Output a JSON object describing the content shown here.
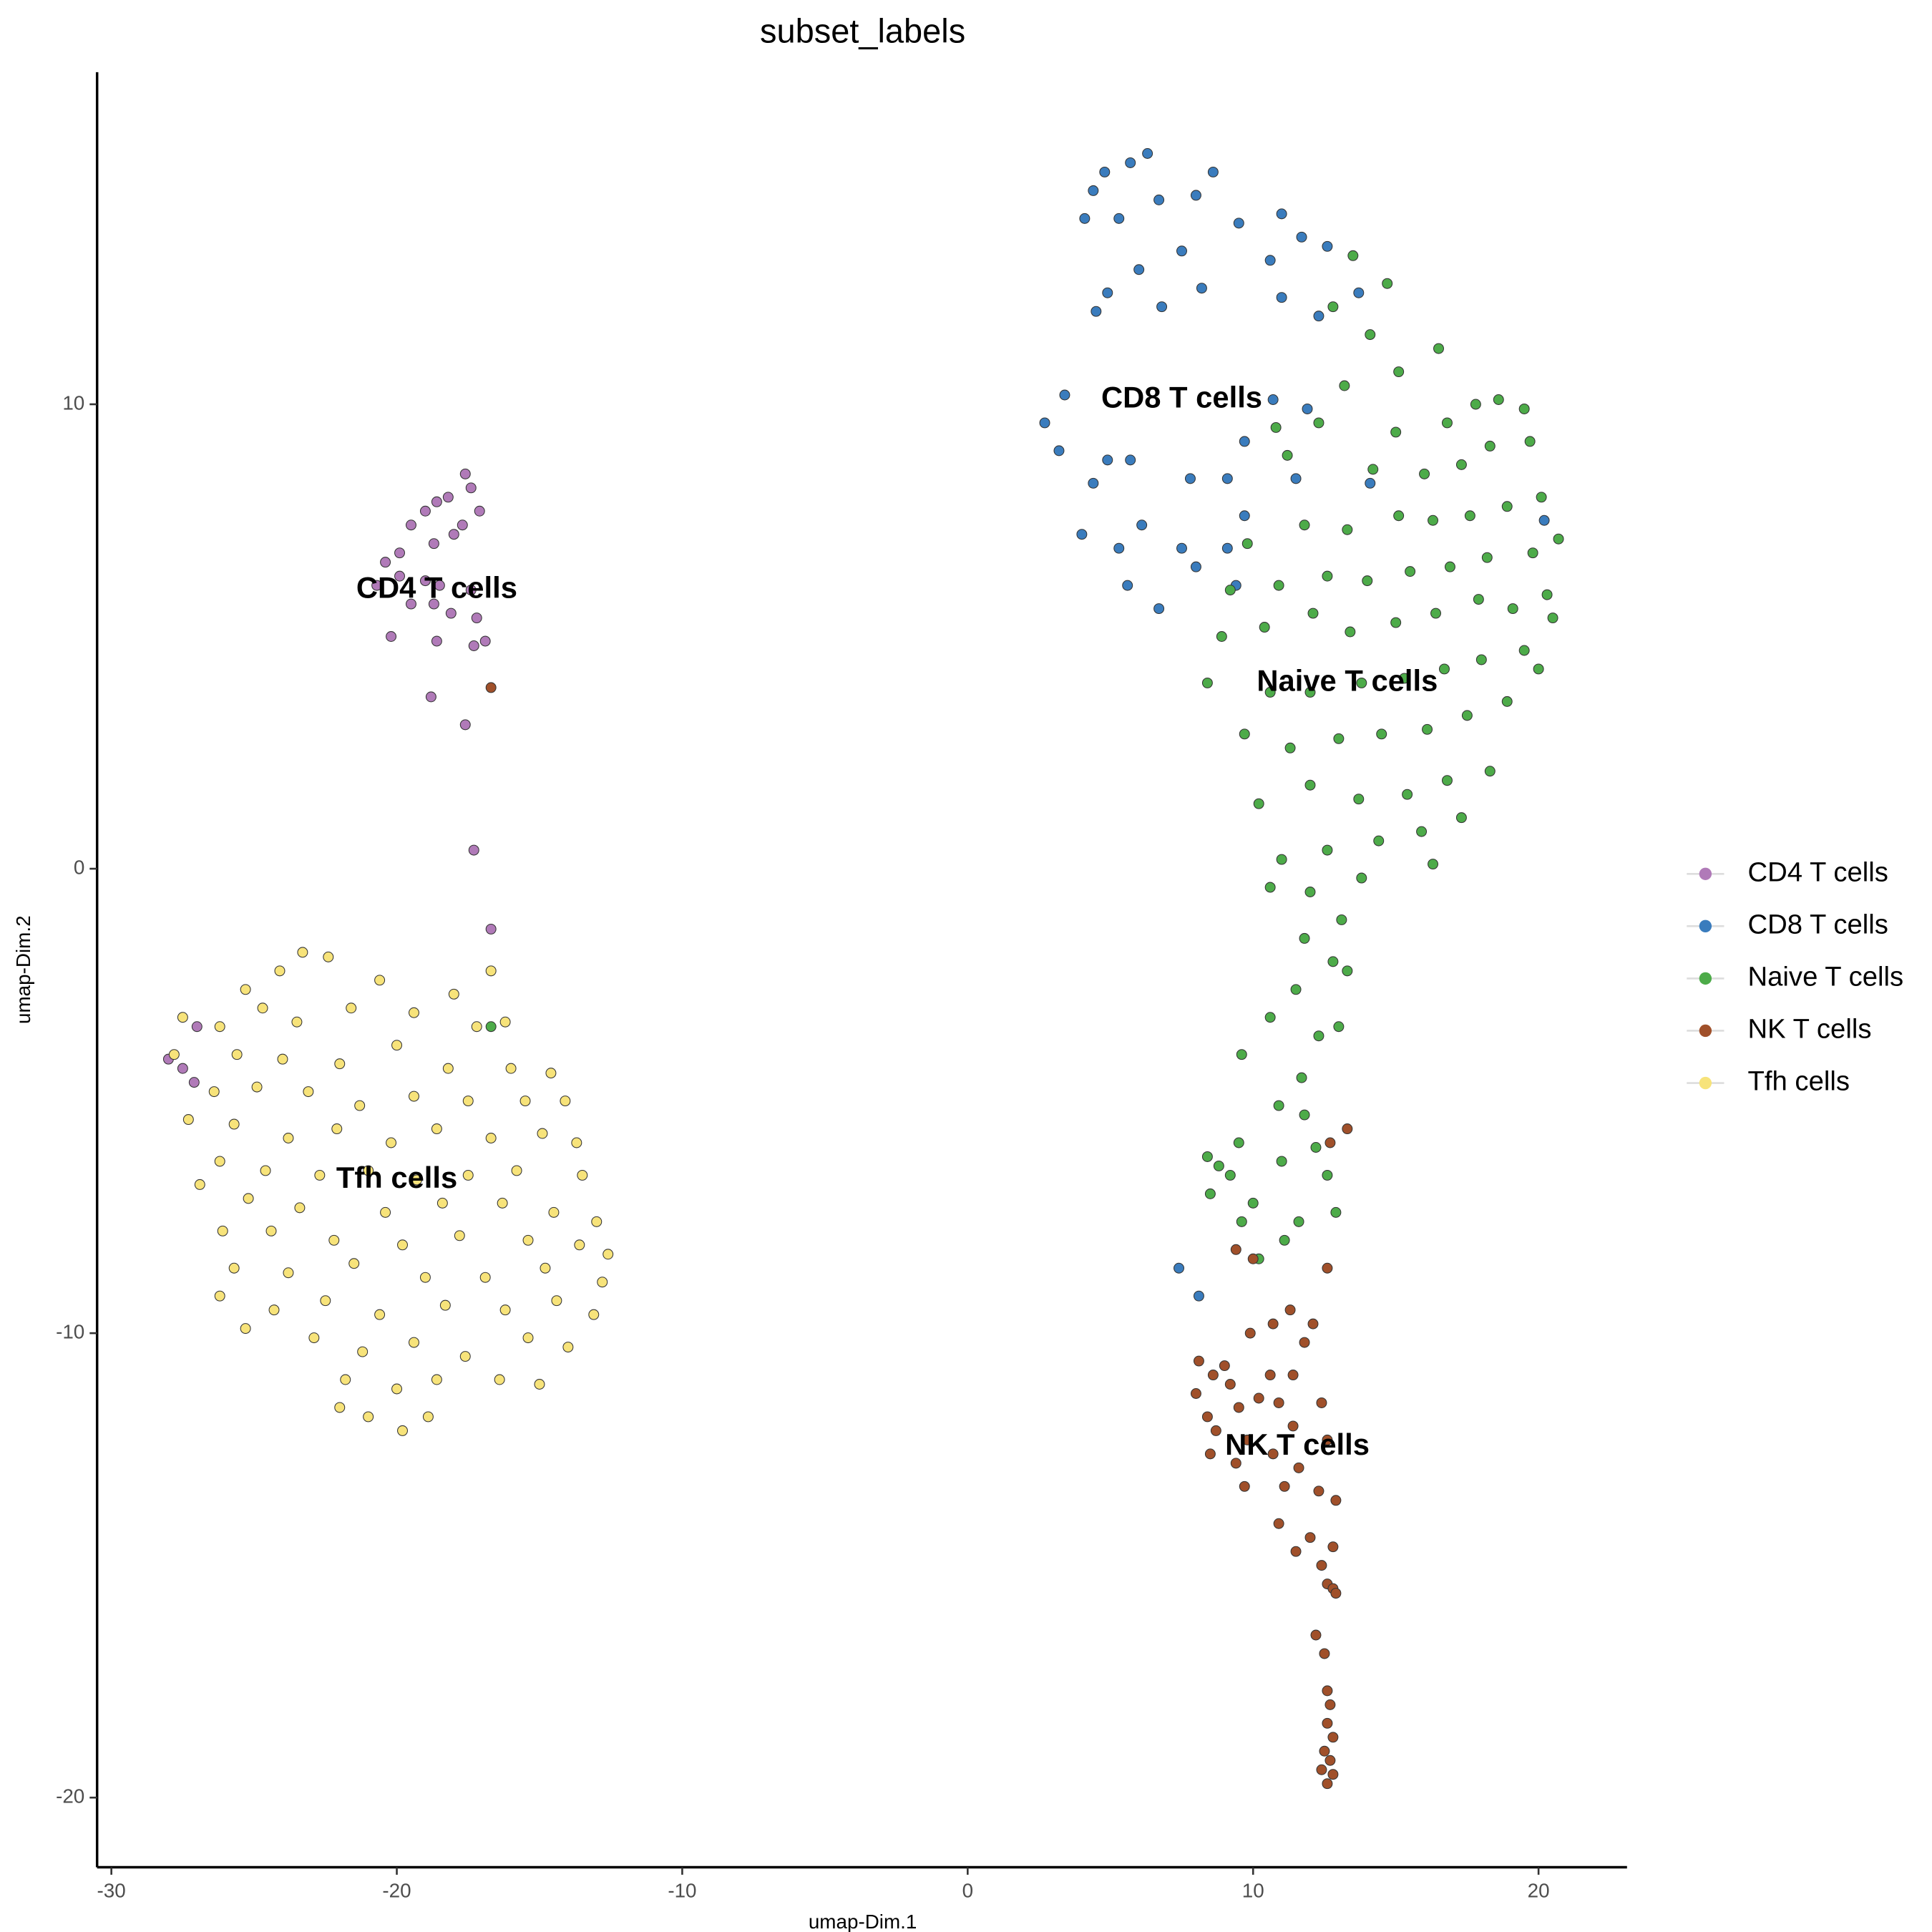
{
  "chart_data": {
    "type": "scatter",
    "title": "subset_labels",
    "x_label": "umap-Dim.1",
    "y_label": "umap-Dim.2",
    "xlim": [
      -30.5,
      23.1
    ],
    "ylim": [
      -21.5,
      17.15
    ],
    "xticks": [
      -30,
      -20,
      -10,
      0,
      10,
      20
    ],
    "yticks": [
      -20,
      -10,
      0,
      10
    ],
    "legend": "right",
    "series": [
      {
        "name": "CD4 T cells",
        "color": "#b07ab8",
        "x": [
          -17.6,
          -17.4,
          -18.2,
          -18.6,
          -19.0,
          -19.5,
          -17.1,
          -17.7,
          -18.0,
          -18.7,
          -19.9,
          -20.4,
          -20.7,
          -19.9,
          -19.0,
          -18.5,
          -17.4,
          -19.5,
          -18.7,
          -18.1,
          -17.2,
          -20.2,
          -18.6,
          -16.9,
          -17.3,
          -18.8,
          -17.6,
          -17.3,
          -16.7,
          -28.0,
          -27.5,
          -27.1,
          -27.0
        ],
        "y": [
          8.5,
          8.2,
          8.0,
          7.9,
          7.7,
          7.4,
          7.7,
          7.4,
          7.2,
          7.0,
          6.8,
          6.6,
          6.1,
          6.3,
          6.2,
          6.1,
          6.0,
          5.7,
          5.7,
          5.5,
          5.4,
          5.0,
          4.9,
          4.9,
          4.8,
          3.7,
          3.1,
          0.4,
          -1.3,
          -4.1,
          -4.3,
          -4.6,
          -3.4
        ]
      },
      {
        "name": "CD8 T cells",
        "color": "#3a7cbd",
        "x": [
          6.3,
          5.7,
          4.8,
          4.4,
          4.1,
          5.3,
          6.7,
          8.0,
          8.6,
          9.5,
          11.0,
          11.7,
          12.6,
          13.7,
          10.6,
          7.5,
          6.0,
          4.9,
          4.5,
          6.8,
          8.2,
          11.0,
          12.3,
          3.4,
          2.7,
          3.2,
          4.9,
          5.7,
          4.4,
          7.8,
          9.1,
          9.7,
          11.5,
          4.0,
          5.3,
          6.1,
          7.5,
          9.1,
          9.7,
          8.0,
          9.4,
          10.7,
          11.9,
          14.1,
          20.2,
          7.4,
          8.1,
          5.6,
          6.7
        ],
        "y": [
          15.4,
          15.2,
          15.0,
          14.6,
          14.0,
          14.0,
          14.4,
          14.5,
          15.0,
          13.9,
          14.1,
          13.6,
          13.4,
          12.4,
          13.1,
          13.3,
          12.9,
          12.4,
          12.0,
          12.1,
          12.5,
          12.3,
          11.9,
          10.2,
          9.6,
          9.0,
          8.8,
          8.8,
          8.3,
          8.4,
          8.4,
          9.2,
          8.4,
          7.2,
          6.9,
          7.4,
          6.9,
          6.9,
          7.6,
          6.5,
          6.1,
          10.1,
          9.9,
          8.3,
          7.5,
          -8.6,
          -9.2,
          6.1,
          5.6
        ]
      },
      {
        "name": "Naive T cells",
        "color": "#4dab49",
        "x": [
          13.5,
          14.7,
          12.8,
          14.1,
          16.5,
          15.1,
          13.2,
          17.8,
          18.6,
          19.5,
          16.8,
          15.0,
          12.3,
          10.8,
          18.3,
          19.7,
          17.3,
          16.0,
          14.2,
          11.2,
          20.1,
          18.9,
          17.6,
          16.3,
          15.1,
          13.3,
          11.8,
          9.8,
          20.7,
          19.8,
          18.2,
          16.9,
          15.5,
          14.0,
          12.6,
          10.9,
          9.2,
          20.3,
          19.1,
          17.9,
          16.4,
          15.0,
          13.4,
          12.1,
          10.4,
          8.9,
          20.5,
          19.5,
          18.0,
          16.7,
          15.3,
          13.8,
          12.0,
          10.6,
          8.4,
          20.0,
          18.9,
          17.5,
          16.1,
          14.5,
          13.0,
          11.3,
          9.7,
          18.3,
          16.8,
          15.4,
          13.7,
          12.0,
          10.2,
          17.3,
          15.9,
          14.4,
          12.6,
          11.0,
          16.3,
          13.8,
          12.0,
          10.6,
          13.1,
          11.8,
          12.8,
          11.5,
          13.3,
          10.6,
          12.3,
          9.6,
          11.7,
          13.0,
          10.9,
          11.8,
          12.2,
          9.5,
          8.4,
          9.2,
          8.8,
          11.0,
          12.6,
          8.5,
          10.0,
          11.6,
          12.9,
          9.6,
          11.1,
          10.2,
          -16.7
        ],
        "y": [
          13.2,
          12.6,
          12.1,
          11.5,
          11.2,
          10.7,
          10.4,
          10.0,
          10.1,
          9.9,
          9.6,
          9.4,
          9.6,
          9.5,
          9.1,
          9.2,
          8.7,
          8.5,
          8.6,
          8.9,
          8.0,
          7.8,
          7.6,
          7.5,
          7.6,
          7.3,
          7.4,
          7.0,
          7.1,
          6.8,
          6.7,
          6.5,
          6.4,
          6.2,
          6.3,
          6.1,
          6.0,
          5.9,
          5.6,
          5.8,
          5.5,
          5.3,
          5.1,
          5.5,
          5.2,
          5.0,
          5.4,
          4.7,
          4.5,
          4.3,
          4.1,
          4.0,
          3.8,
          3.8,
          4.0,
          4.3,
          3.6,
          3.3,
          3.0,
          2.9,
          2.8,
          2.6,
          2.9,
          2.1,
          1.9,
          1.6,
          1.5,
          1.8,
          1.4,
          1.1,
          0.8,
          0.6,
          0.4,
          0.2,
          0.1,
          -0.2,
          -0.5,
          -0.4,
          -1.1,
          -1.5,
          -2.0,
          -2.6,
          -2.2,
          -3.2,
          -3.6,
          -4.0,
          -4.5,
          -3.4,
          -5.1,
          -5.3,
          -6.0,
          -5.9,
          -6.2,
          -6.6,
          -6.4,
          -6.3,
          -6.6,
          -7.0,
          -7.2,
          -7.6,
          -7.4,
          -7.6,
          -8.0,
          -8.4,
          -3.4
        ]
      },
      {
        "name": "NK T cells",
        "color": "#a0502a",
        "x": [
          13.3,
          12.7,
          9.4,
          10.0,
          12.6,
          11.3,
          10.7,
          12.1,
          9.9,
          11.8,
          8.1,
          8.6,
          9.0,
          10.6,
          11.4,
          9.2,
          10.2,
          8.0,
          8.4,
          9.5,
          10.9,
          12.4,
          8.7,
          9.8,
          11.4,
          12.6,
          8.5,
          9.4,
          10.7,
          11.6,
          9.7,
          11.1,
          12.3,
          12.9,
          10.9,
          12.0,
          12.8,
          11.5,
          12.4,
          12.6,
          12.8,
          12.9,
          12.2,
          12.5,
          12.6,
          12.7,
          12.6,
          12.8,
          12.5,
          12.7,
          12.4,
          12.8,
          12.6,
          -16.7
        ],
        "y": [
          -5.6,
          -5.9,
          -8.2,
          -8.4,
          -8.6,
          -9.5,
          -9.8,
          -9.8,
          -10.0,
          -10.2,
          -10.6,
          -10.9,
          -10.7,
          -10.9,
          -10.9,
          -11.1,
          -11.4,
          -11.3,
          -11.8,
          -11.6,
          -11.5,
          -11.5,
          -12.1,
          -12.3,
          -12.0,
          -12.3,
          -12.6,
          -12.8,
          -12.6,
          -12.9,
          -13.3,
          -13.3,
          -13.4,
          -13.6,
          -14.1,
          -14.4,
          -14.6,
          -14.7,
          -15.0,
          -15.4,
          -15.5,
          -15.6,
          -16.5,
          -16.9,
          -17.7,
          -18.0,
          -18.4,
          -18.7,
          -19.0,
          -19.2,
          -19.4,
          -19.5,
          -19.7,
          3.9
        ]
      },
      {
        "name": "Tfh cells",
        "color": "#f7e37a",
        "x": [
          -23.3,
          -22.4,
          -24.1,
          -25.3,
          -20.6,
          -18.0,
          -16.7,
          -27.5,
          -26.2,
          -24.7,
          -23.5,
          -21.6,
          -19.4,
          -17.2,
          -16.2,
          -27.8,
          -25.6,
          -24.0,
          -22.0,
          -20.0,
          -18.2,
          -16.0,
          -14.6,
          -26.4,
          -24.9,
          -23.1,
          -21.3,
          -19.4,
          -17.5,
          -15.5,
          -14.1,
          -27.3,
          -25.7,
          -23.8,
          -22.1,
          -20.2,
          -18.6,
          -16.7,
          -14.9,
          -13.7,
          -26.2,
          -24.6,
          -22.7,
          -21.0,
          -19.3,
          -17.5,
          -15.8,
          -13.5,
          -26.9,
          -25.2,
          -23.4,
          -20.4,
          -18.4,
          -16.3,
          -14.5,
          -13.0,
          -26.1,
          -24.4,
          -22.2,
          -19.8,
          -17.8,
          -15.4,
          -13.6,
          -12.6,
          -25.7,
          -23.8,
          -21.5,
          -19.0,
          -16.9,
          -14.8,
          -12.8,
          -26.2,
          -24.3,
          -22.5,
          -20.6,
          -18.3,
          -16.2,
          -14.4,
          -13.1,
          -25.3,
          -22.9,
          -21.2,
          -19.4,
          -17.6,
          -15.4,
          -14.0,
          -21.8,
          -20.0,
          -18.6,
          -16.4,
          -15.0,
          -21.0,
          -19.8,
          -18.9,
          -22.0
        ],
        "y": [
          -1.8,
          -1.9,
          -2.2,
          -2.6,
          -2.4,
          -2.7,
          -2.2,
          -3.2,
          -3.4,
          -3.0,
          -3.3,
          -3.0,
          -3.1,
          -3.4,
          -3.3,
          -4.0,
          -4.0,
          -4.1,
          -4.2,
          -3.8,
          -4.3,
          -4.3,
          -4.4,
          -4.8,
          -4.7,
          -4.8,
          -5.1,
          -4.9,
          -5.0,
          -5.0,
          -5.0,
          -5.4,
          -5.5,
          -5.8,
          -5.6,
          -5.9,
          -5.6,
          -5.8,
          -5.7,
          -5.9,
          -6.3,
          -6.5,
          -6.6,
          -6.5,
          -6.7,
          -6.6,
          -6.5,
          -6.6,
          -6.8,
          -7.1,
          -7.3,
          -7.4,
          -7.2,
          -7.2,
          -7.4,
          -7.6,
          -7.8,
          -7.8,
          -8.0,
          -8.1,
          -7.9,
          -8.0,
          -8.1,
          -8.3,
          -8.6,
          -8.7,
          -8.5,
          -8.8,
          -8.8,
          -8.6,
          -8.9,
          -9.2,
          -9.5,
          -9.3,
          -9.6,
          -9.4,
          -9.5,
          -9.3,
          -9.6,
          -9.9,
          -10.1,
          -10.4,
          -10.2,
          -10.5,
          -10.1,
          -10.3,
          -11.0,
          -11.2,
          -11.0,
          -11.0,
          -11.1,
          -11.8,
          -12.1,
          -11.8,
          -11.6
        ]
      }
    ]
  }
}
